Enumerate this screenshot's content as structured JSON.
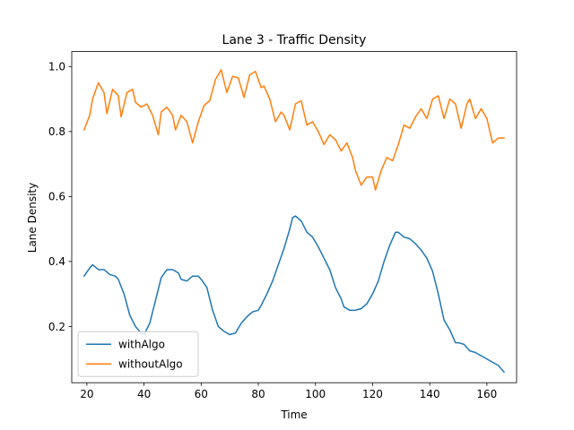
{
  "chart_data": {
    "type": "line",
    "title": "Lane 3 - Traffic Density",
    "xlabel": "Time",
    "ylabel": "Lane Density",
    "xlim": [
      14.7,
      170.4
    ],
    "ylim": [
      0.027,
      1.046
    ],
    "xticks": [
      20,
      40,
      60,
      80,
      100,
      120,
      140,
      160
    ],
    "yticks": [
      0.2,
      0.4,
      0.6,
      0.8,
      1.0
    ],
    "ytick_labels": [
      "0.2",
      "0.4",
      "0.6",
      "0.8",
      "1.0"
    ],
    "grid": false,
    "legend_position": "lower-left",
    "series": [
      {
        "name": "withAlgo",
        "color": "#1f77b4",
        "x": [
          19,
          21,
          22,
          24,
          26,
          28,
          30,
          31,
          33,
          35,
          37,
          39,
          40,
          42,
          44,
          46,
          48,
          50,
          52,
          53,
          55,
          57,
          59,
          60,
          62,
          64,
          66,
          68,
          70,
          72,
          74,
          76,
          78,
          80,
          81,
          83,
          85,
          87,
          89,
          91,
          92,
          93,
          95,
          97,
          99,
          101,
          103,
          105,
          107,
          109,
          110,
          112,
          114,
          116,
          118,
          120,
          122,
          124,
          126,
          128,
          129,
          131,
          133,
          135,
          137,
          139,
          141,
          143,
          145,
          147,
          149,
          150,
          152,
          154,
          156,
          158,
          160,
          162,
          164,
          166
        ],
        "y": [
          0.355,
          0.38,
          0.39,
          0.375,
          0.375,
          0.36,
          0.355,
          0.345,
          0.3,
          0.235,
          0.2,
          0.18,
          0.175,
          0.21,
          0.28,
          0.35,
          0.375,
          0.375,
          0.365,
          0.345,
          0.34,
          0.355,
          0.355,
          0.345,
          0.32,
          0.25,
          0.2,
          0.185,
          0.175,
          0.18,
          0.21,
          0.23,
          0.245,
          0.25,
          0.265,
          0.3,
          0.34,
          0.39,
          0.44,
          0.5,
          0.535,
          0.54,
          0.525,
          0.49,
          0.475,
          0.445,
          0.41,
          0.375,
          0.32,
          0.285,
          0.26,
          0.25,
          0.25,
          0.255,
          0.27,
          0.3,
          0.34,
          0.4,
          0.45,
          0.49,
          0.49,
          0.475,
          0.47,
          0.455,
          0.435,
          0.41,
          0.37,
          0.3,
          0.22,
          0.19,
          0.15,
          0.15,
          0.145,
          0.125,
          0.12,
          0.11,
          0.1,
          0.09,
          0.08,
          0.06
        ]
      },
      {
        "name": "withoutAlgo",
        "color": "#ff7f0e",
        "x": [
          19,
          21,
          22,
          24,
          26,
          27,
          29,
          31,
          32,
          34,
          36,
          37,
          39,
          41,
          43,
          45,
          46,
          48,
          50,
          51,
          53,
          55,
          57,
          59,
          61,
          63,
          65,
          67,
          69,
          71,
          73,
          75,
          77,
          79,
          81,
          82,
          84,
          86,
          88,
          89,
          91,
          93,
          95,
          97,
          99,
          101,
          103,
          105,
          107,
          109,
          111,
          113,
          114,
          116,
          118,
          120,
          121,
          123,
          125,
          127,
          129,
          131,
          133,
          135,
          137,
          139,
          141,
          143,
          145,
          147,
          149,
          151,
          153,
          154,
          156,
          158,
          160,
          162,
          164,
          166
        ],
        "y": [
          0.805,
          0.85,
          0.9,
          0.95,
          0.92,
          0.855,
          0.93,
          0.91,
          0.845,
          0.92,
          0.93,
          0.89,
          0.875,
          0.885,
          0.85,
          0.79,
          0.86,
          0.875,
          0.85,
          0.805,
          0.85,
          0.83,
          0.765,
          0.83,
          0.88,
          0.895,
          0.96,
          0.99,
          0.92,
          0.97,
          0.965,
          0.905,
          0.975,
          0.985,
          0.935,
          0.94,
          0.9,
          0.83,
          0.86,
          0.85,
          0.805,
          0.885,
          0.895,
          0.82,
          0.83,
          0.8,
          0.76,
          0.79,
          0.775,
          0.74,
          0.765,
          0.72,
          0.68,
          0.635,
          0.66,
          0.66,
          0.62,
          0.68,
          0.72,
          0.71,
          0.76,
          0.82,
          0.81,
          0.845,
          0.87,
          0.84,
          0.9,
          0.91,
          0.84,
          0.9,
          0.885,
          0.81,
          0.885,
          0.9,
          0.84,
          0.87,
          0.84,
          0.765,
          0.78,
          0.78
        ]
      }
    ]
  }
}
